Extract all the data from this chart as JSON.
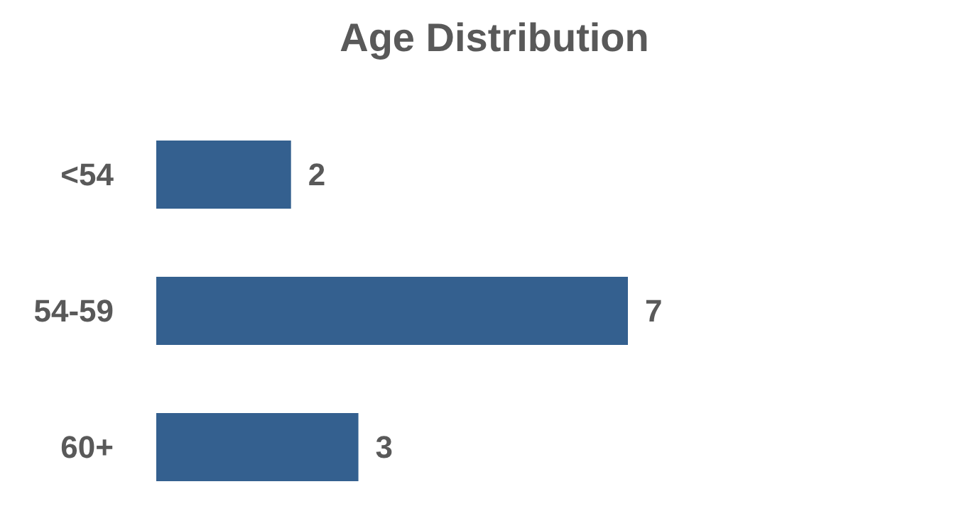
{
  "chart_data": {
    "type": "bar",
    "orientation": "horizontal",
    "title": "Age Distribution",
    "categories": [
      "<54",
      "54-59",
      "60+"
    ],
    "values": [
      2,
      7,
      3
    ],
    "color": "#34608f",
    "data_labels": true
  }
}
